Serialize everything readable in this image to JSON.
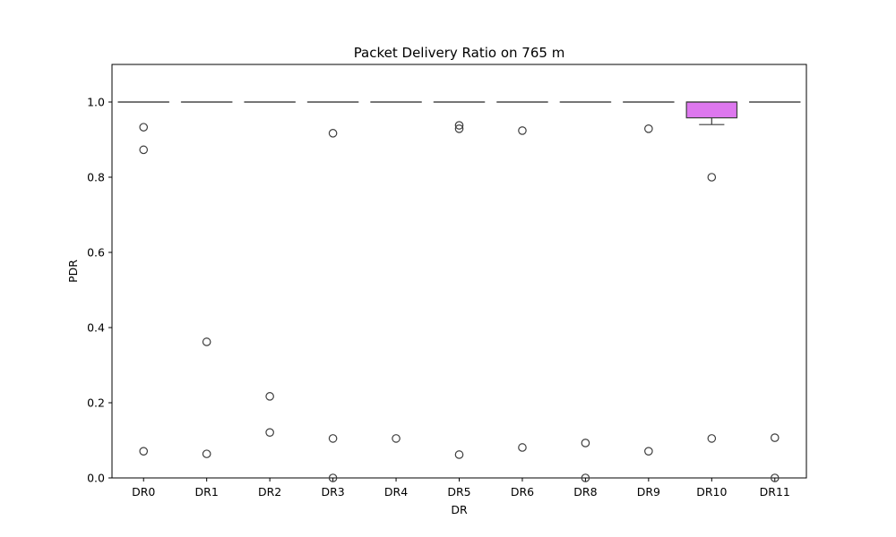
{
  "chart_data": {
    "type": "box",
    "title": "Packet Delivery Ratio on 765 m",
    "xlabel": "DR",
    "ylabel": "PDR",
    "ylim": [
      0,
      1.1
    ],
    "yticks": [
      0.0,
      0.2,
      0.4,
      0.6,
      0.8,
      1.0
    ],
    "ytick_labels": [
      "0.0",
      "0.2",
      "0.4",
      "0.6",
      "0.8",
      "1.0"
    ],
    "grid": false,
    "legend": "none",
    "categories": [
      "DR0",
      "DR1",
      "DR2",
      "DR3",
      "DR4",
      "DR5",
      "DR6",
      "DR8",
      "DR9",
      "DR10",
      "DR11"
    ],
    "boxes": [
      {
        "category": "DR0",
        "q1": 1.0,
        "median": 1.0,
        "q3": 1.0,
        "whisker_low": 1.0,
        "whisker_high": 1.0,
        "outliers": [
          0.933,
          0.873,
          0.071
        ],
        "color": "#aabbff"
      },
      {
        "category": "DR1",
        "q1": 1.0,
        "median": 1.0,
        "q3": 1.0,
        "whisker_low": 1.0,
        "whisker_high": 1.0,
        "outliers": [
          0.362,
          0.064
        ],
        "color": "#aabbff"
      },
      {
        "category": "DR2",
        "q1": 1.0,
        "median": 1.0,
        "q3": 1.0,
        "whisker_low": 1.0,
        "whisker_high": 1.0,
        "outliers": [
          0.217,
          0.121
        ],
        "color": "#aabbff"
      },
      {
        "category": "DR3",
        "q1": 1.0,
        "median": 1.0,
        "q3": 1.0,
        "whisker_low": 1.0,
        "whisker_high": 1.0,
        "outliers": [
          0.917,
          0.105,
          0.0
        ],
        "color": "#aabbff"
      },
      {
        "category": "DR4",
        "q1": 1.0,
        "median": 1.0,
        "q3": 1.0,
        "whisker_low": 1.0,
        "whisker_high": 1.0,
        "outliers": [
          0.105
        ],
        "color": "#aabbff"
      },
      {
        "category": "DR5",
        "q1": 1.0,
        "median": 1.0,
        "q3": 1.0,
        "whisker_low": 1.0,
        "whisker_high": 1.0,
        "outliers": [
          0.938,
          0.929,
          0.062
        ],
        "color": "#aabbff"
      },
      {
        "category": "DR6",
        "q1": 1.0,
        "median": 1.0,
        "q3": 1.0,
        "whisker_low": 1.0,
        "whisker_high": 1.0,
        "outliers": [
          0.924,
          0.081
        ],
        "color": "#aabbff"
      },
      {
        "category": "DR8",
        "q1": 1.0,
        "median": 1.0,
        "q3": 1.0,
        "whisker_low": 1.0,
        "whisker_high": 1.0,
        "outliers": [
          0.093,
          0.0
        ],
        "color": "#aabbff"
      },
      {
        "category": "DR9",
        "q1": 1.0,
        "median": 1.0,
        "q3": 1.0,
        "whisker_low": 1.0,
        "whisker_high": 1.0,
        "outliers": [
          0.929,
          0.071
        ],
        "color": "#aabbff"
      },
      {
        "category": "DR10",
        "q1": 0.958,
        "median": 1.0,
        "q3": 1.0,
        "whisker_low": 0.94,
        "whisker_high": 1.0,
        "outliers": [
          0.8,
          0.105
        ],
        "color": "#dd77ee"
      },
      {
        "category": "DR11",
        "q1": 1.0,
        "median": 1.0,
        "q3": 1.0,
        "whisker_low": 1.0,
        "whisker_high": 1.0,
        "outliers": [
          0.107,
          0.0
        ],
        "color": "#aabbff"
      }
    ]
  }
}
